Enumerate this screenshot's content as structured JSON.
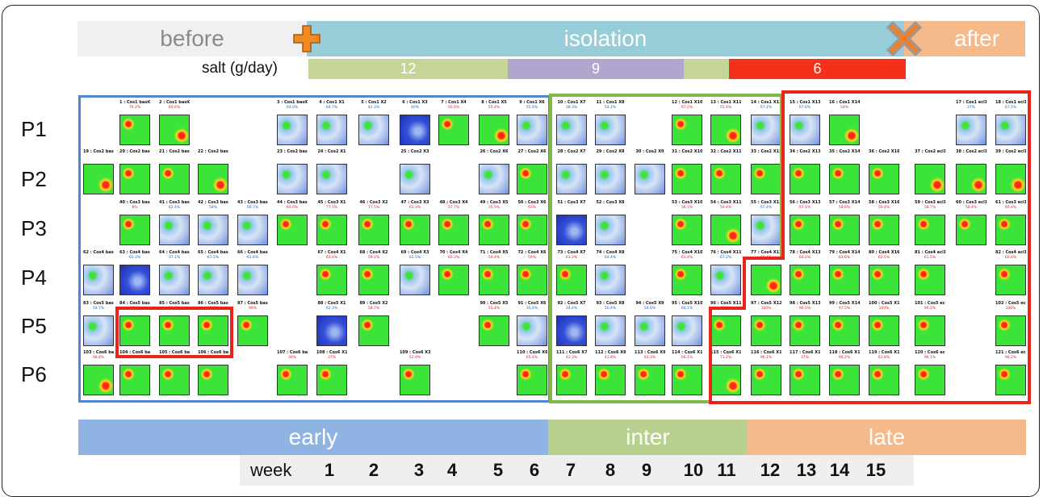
{
  "phases": {
    "before": "before",
    "isolation": "isolation",
    "after": "after"
  },
  "salt": {
    "label": "salt (g/day)",
    "values": [
      "12",
      "9",
      "6"
    ],
    "colors": [
      "#c5d596",
      "#b2a5ce",
      "#f4301a"
    ]
  },
  "rows": [
    "P1",
    "P2",
    "P3",
    "P4",
    "P5",
    "P6"
  ],
  "periods": {
    "early": "early",
    "inter": "inter",
    "late": "late"
  },
  "period_colors": {
    "early": "#8fb4e3",
    "inter": "#b9d18e",
    "late": "#f6b98a"
  },
  "phase_colors": {
    "before": "#f0f0f0",
    "isolation": "#96cdd8",
    "after": "#f6b98a"
  },
  "region_colors": {
    "early": "#4f86cf",
    "inter": "#7fba49",
    "late": "#e8241b",
    "highlight": "#e8241b"
  },
  "icons": {
    "start": "plus-icon",
    "end": "x-icon"
  },
  "week": {
    "word": "week",
    "numbers": [
      "1",
      "2",
      "3",
      "4",
      "5",
      "6",
      "7",
      "8",
      "9",
      "10",
      "11",
      "12",
      "13",
      "14",
      "15"
    ]
  },
  "cells": [
    {
      "label": "1 : Cos1 basi02",
      "pct": "76.2%"
    },
    {
      "label": "2 : Cos1 basi03",
      "pct": "60.6%"
    },
    {
      "label": "3 : Cos1 basi06",
      "pct": "64.0%"
    },
    {
      "label": "4 : Cos1 X1",
      "pct": "64.7%"
    },
    {
      "label": "5 : Cos1 X2",
      "pct": "42.3%"
    },
    {
      "label": "6 : Cos1 X3",
      "pct": "40%"
    },
    {
      "label": "7 : Cos1 X4",
      "pct": "56.6%"
    },
    {
      "label": "8 : Cos1 X5",
      "pct": "55.4%"
    },
    {
      "label": "9 : Cos1 X6",
      "pct": "55.4%"
    },
    {
      "label": "10 : Cos1 X7",
      "pct": "38.3%"
    },
    {
      "label": "11 : Cos1 X8",
      "pct": "54.2%"
    },
    {
      "label": "12 : Cos1 X10",
      "pct": "67.2%"
    },
    {
      "label": "13 : Cos1 X11",
      "pct": "55.4%"
    },
    {
      "label": "14 : Cos1 X12",
      "pct": "67.2%"
    },
    {
      "label": "15 : Cos1 X13",
      "pct": "67.6%"
    },
    {
      "label": "16 : Cos1 X14",
      "pct": "54%"
    },
    {
      "label": "17 : Cos1 ecl17",
      "pct": "37%"
    },
    {
      "label": "18 : Cos1 ecl18",
      "pct": "67.5%"
    },
    {
      "label": "19 : Cos2 basi01",
      "pct": ""
    },
    {
      "label": "20 : Cos2 basi02",
      "pct": ""
    },
    {
      "label": "21 : Cos2 basi03",
      "pct": ""
    },
    {
      "label": "22 : Cos2 basi04",
      "pct": ""
    },
    {
      "label": "23 : Cos2 basi06",
      "pct": ""
    },
    {
      "label": "24 : Cos2 X1",
      "pct": ""
    },
    {
      "label": "25 : Cos2 X3",
      "pct": ""
    },
    {
      "label": "26 : Cos2 X6",
      "pct": ""
    },
    {
      "label": "27 : Cos2 X6",
      "pct": ""
    },
    {
      "label": "28 : Cos2 X7",
      "pct": ""
    },
    {
      "label": "29 : Cos2 X8",
      "pct": ""
    },
    {
      "label": "30 : Cos2 X9",
      "pct": ""
    },
    {
      "label": "31 : Cos2 X10",
      "pct": ""
    },
    {
      "label": "32 : Cos2 X11",
      "pct": ""
    },
    {
      "label": "33 : Cos2 X12",
      "pct": ""
    },
    {
      "label": "34 : Cos2 X13",
      "pct": ""
    },
    {
      "label": "35 : Cos2 X14",
      "pct": ""
    },
    {
      "label": "36 : Cos2 X16",
      "pct": ""
    },
    {
      "label": "37 : Cos2 ecl16",
      "pct": ""
    },
    {
      "label": "38 : Cos2 ecl17",
      "pct": ""
    },
    {
      "label": "39 : Cos2 ecl18",
      "pct": ""
    },
    {
      "label": "40 : Cos3 basi02",
      "pct": "8%"
    },
    {
      "label": "41 : Cos3 basi03",
      "pct": "62.4%"
    },
    {
      "label": "42 : Cos3 basi04",
      "pct": "58%"
    },
    {
      "label": "43 : Cos3 basi05",
      "pct": "60.7%"
    },
    {
      "label": "44 : Cos3 basi06",
      "pct": "60.0%"
    },
    {
      "label": "45 : Cos3 X1",
      "pct": "77.5%"
    },
    {
      "label": "46 : Cos3 X2",
      "pct": "77.5%"
    },
    {
      "label": "47 : Cos3 X3",
      "pct": "63.3%"
    },
    {
      "label": "48 : Cos3 X4",
      "pct": "37.7%"
    },
    {
      "label": "49 : Cos3 X5",
      "pct": "35.5%"
    },
    {
      "label": "50 : Cos3 X6",
      "pct": "63%"
    },
    {
      "label": "51 : Cos3 X7",
      "pct": ""
    },
    {
      "label": "52 : Cos3 X8",
      "pct": ""
    },
    {
      "label": "53 : Cos3 X10",
      "pct": "36.1%"
    },
    {
      "label": "54 : Cos3 X11",
      "pct": "59.4%"
    },
    {
      "label": "55 : Cos3 X12",
      "pct": "67.4%"
    },
    {
      "label": "56 : Cos3 X13",
      "pct": "67.1%"
    },
    {
      "label": "57 : Cos3 X14",
      "pct": "58.6%"
    },
    {
      "label": "58 : Cos3 X16",
      "pct": "59.4%"
    },
    {
      "label": "59 : Cos3 ecl16",
      "pct": "58.7%"
    },
    {
      "label": "60 : Cos3 ecl17",
      "pct": "58.4%"
    },
    {
      "label": "61 : Cos3 ecl18",
      "pct": "60.4%"
    },
    {
      "label": "62 : Cos4 basi01",
      "pct": ""
    },
    {
      "label": "63 : Cos4 basi02",
      "pct": "65.3%"
    },
    {
      "label": "64 : Cos4 basi03",
      "pct": "37.1%"
    },
    {
      "label": "65 : Cos4 basi05",
      "pct": "67.5%"
    },
    {
      "label": "66 : Cos4 basi06",
      "pct": "61.6%"
    },
    {
      "label": "67 : Cos4 X1",
      "pct": "63.4%"
    },
    {
      "label": "68 : Cos4 X2",
      "pct": "59.1%"
    },
    {
      "label": "69 : Cos4 X3",
      "pct": "62.5%"
    },
    {
      "label": "70 : Cos4 X4",
      "pct": "60.3%"
    },
    {
      "label": "71 : Cos4 X5",
      "pct": "59.4%"
    },
    {
      "label": "72 : Cos4 X6",
      "pct": "59%"
    },
    {
      "label": "73 : Cos4 X7",
      "pct": "63.3%"
    },
    {
      "label": "74 : Cos4 X8",
      "pct": "64.4%"
    },
    {
      "label": "75 : Cos4 X10",
      "pct": "61.4%"
    },
    {
      "label": "76 : Cos4 X11",
      "pct": "67.2%"
    },
    {
      "label": "77 : Cos4 X12",
      "pct": "60.4%"
    },
    {
      "label": "78 : Cos4 X13",
      "pct": "60.1%"
    },
    {
      "label": "79 : Cos4 X14",
      "pct": "63.6%"
    },
    {
      "label": "80 : Cos4 X16",
      "pct": "62.5%"
    },
    {
      "label": "81 : Cos4 ecl16",
      "pct": "61.5%"
    },
    {
      "label": "82 : Cos4 ecl18",
      "pct": "60.4%"
    },
    {
      "label": "83 : Cos5 basi01",
      "pct": "58.7%"
    },
    {
      "label": "84 : Cos5 basi02",
      "pct": "100%"
    },
    {
      "label": "85 : Cos5 basi03",
      "pct": "78.2%"
    },
    {
      "label": "86 : Cos5 basi04",
      "pct": "97.2%"
    },
    {
      "label": "87 : Cos5 basi06",
      "pct": "99%"
    },
    {
      "label": "88 : Cos5 X1",
      "pct": "62.3%"
    },
    {
      "label": "89 : Cos5 X2",
      "pct": "58.7%"
    },
    {
      "label": "90 : Cos5 X5",
      "pct": "55.4%"
    },
    {
      "label": "91 : Cos5 X6",
      "pct": "35.4%"
    },
    {
      "label": "92 : Cos5 X7",
      "pct": "34.4%"
    },
    {
      "label": "93 : Cos5 X8",
      "pct": "50.4%"
    },
    {
      "label": "94 : Cos5 X9",
      "pct": "54.6%"
    },
    {
      "label": "95 : Cos5 X10",
      "pct": "66.1%"
    },
    {
      "label": "96 : Cos5 X11",
      "pct": "63.3%"
    },
    {
      "label": "97 : Cos5 X12",
      "pct": "100%"
    },
    {
      "label": "98 : Cos5 X13",
      "pct": "96.5%"
    },
    {
      "label": "99 : Cos5 X14",
      "pct": "97.5%"
    },
    {
      "label": "100 : Cos5 X16",
      "pct": "100%"
    },
    {
      "label": "101 : Cos5 ecl16",
      "pct": "96.2%"
    },
    {
      "label": "102 : Cos5 ecl18",
      "pct": "100%"
    },
    {
      "label": "103 : Cos6 basi01",
      "pct": "98.8%"
    },
    {
      "label": "104 : Cos6 basi02",
      "pct": "62.5%"
    },
    {
      "label": "105 : Cos6 basi03",
      "pct": "66.2%"
    },
    {
      "label": "106 : Cos6 basi04",
      "pct": "65.6%"
    },
    {
      "label": "107 : Cos6 basi06",
      "pct": "39%"
    },
    {
      "label": "108 : Cos6 X1",
      "pct": "37%"
    },
    {
      "label": "109 : Cos6 X3",
      "pct": "52.9%"
    },
    {
      "label": "110 : Cos6 X6",
      "pct": "65.4%"
    },
    {
      "label": "111 : Cos6 X7",
      "pct": "42.3%"
    },
    {
      "label": "112 : Cos6 X8",
      "pct": "41.8%"
    },
    {
      "label": "113 : Cos6 X9",
      "pct": "61.3%"
    },
    {
      "label": "114 : Cos6 X10",
      "pct": "66.1%"
    },
    {
      "label": "115 : Cos6 X11",
      "pct": "71.2%"
    },
    {
      "label": "116 : Cos6 X12",
      "pct": "96.1%"
    },
    {
      "label": "117 : Cos6 X13",
      "pct": "37%"
    },
    {
      "label": "118 : Cos6 X14",
      "pct": "96.2%"
    },
    {
      "label": "119 : Cos6 X16",
      "pct": "61.8%"
    },
    {
      "label": "120 : Cos6 ecl16",
      "pct": "96.1%"
    },
    {
      "label": "121 : Cos6 ecl18",
      "pct": "96.2%"
    }
  ]
}
